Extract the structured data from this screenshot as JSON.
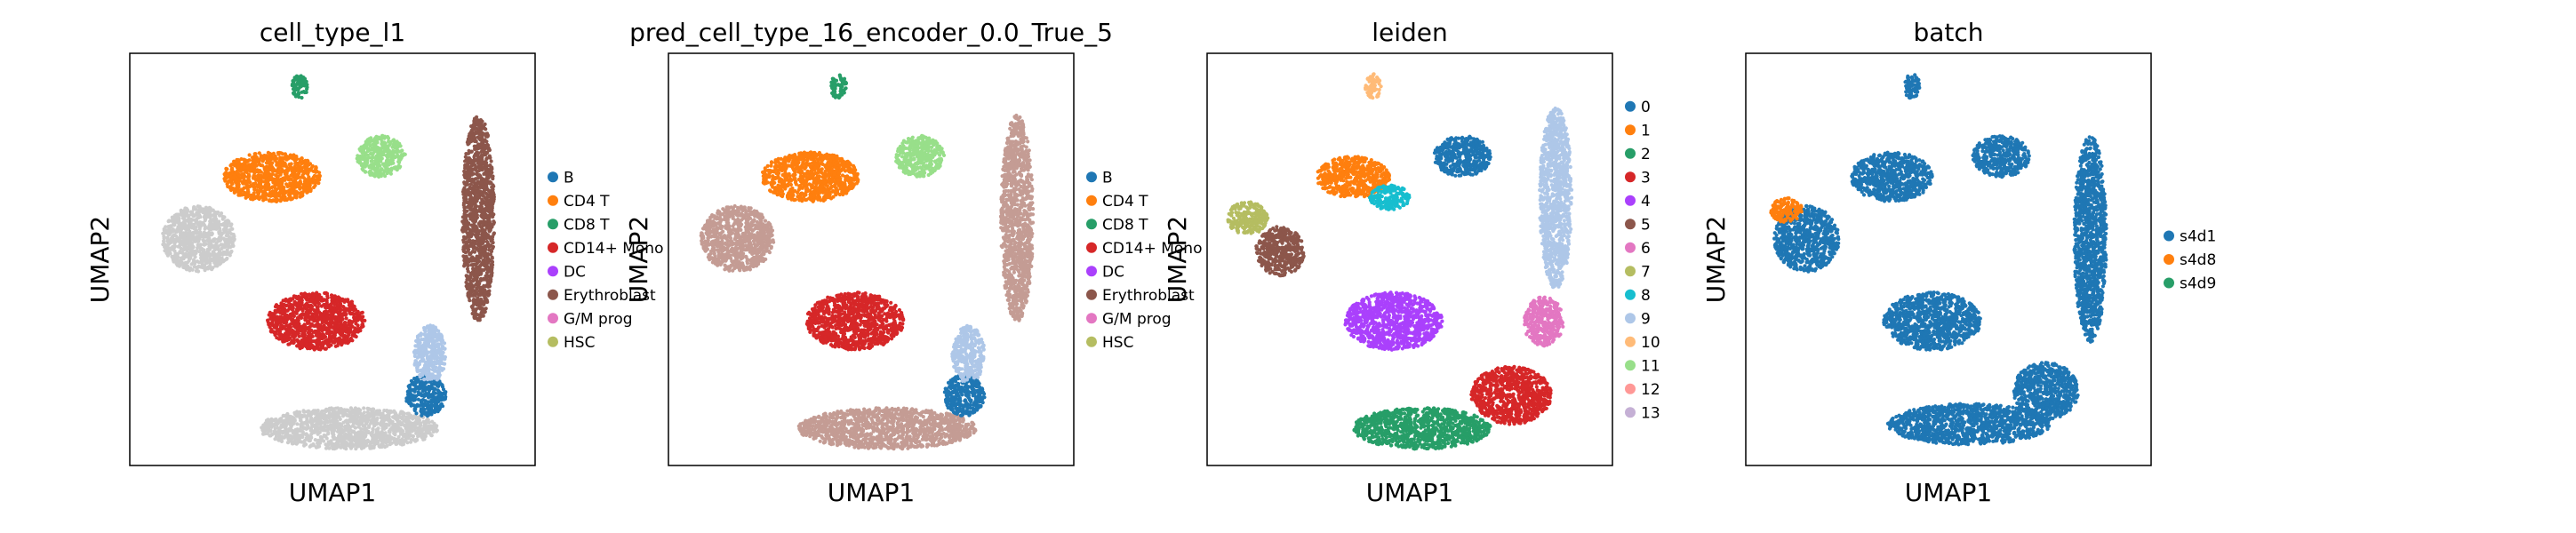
{
  "chart_data": [
    {
      "type": "scatter",
      "title": "cell_type_l1",
      "xlabel": "UMAP1",
      "ylabel": "UMAP2",
      "grid": false,
      "legend_position": "right",
      "legend": [
        {
          "label": "B",
          "color": "#1f77b4"
        },
        {
          "label": "CD4 T",
          "color": "#ff7f0e"
        },
        {
          "label": "CD8 T",
          "color": "#279e68"
        },
        {
          "label": "CD14+ Mono",
          "color": "#d62728"
        },
        {
          "label": "DC",
          "color": "#aa40fc"
        },
        {
          "label": "Erythroblast",
          "color": "#8c564b"
        },
        {
          "label": "G/M prog",
          "color": "#e377c2"
        },
        {
          "label": "HSC",
          "color": "#b5bd61"
        }
      ],
      "clusters": [
        {
          "x": 0.42,
          "y": 0.92,
          "rx": 0.02,
          "ry": 0.03,
          "color": "#279e68"
        },
        {
          "x": 0.62,
          "y": 0.75,
          "rx": 0.06,
          "ry": 0.05,
          "color": "#98df8a"
        },
        {
          "x": 0.35,
          "y": 0.7,
          "rx": 0.12,
          "ry": 0.06,
          "color": "#ff7f0e"
        },
        {
          "x": 0.17,
          "y": 0.55,
          "rx": 0.09,
          "ry": 0.08,
          "color": "#cccccc"
        },
        {
          "x": 0.46,
          "y": 0.35,
          "rx": 0.12,
          "ry": 0.07,
          "color": "#d62728"
        },
        {
          "x": 0.54,
          "y": 0.09,
          "rx": 0.22,
          "ry": 0.05,
          "color": "#cccccc"
        },
        {
          "x": 0.73,
          "y": 0.17,
          "rx": 0.05,
          "ry": 0.05,
          "color": "#1f77b4"
        },
        {
          "x": 0.74,
          "y": 0.27,
          "rx": 0.04,
          "ry": 0.07,
          "color": "#aec7e8"
        },
        {
          "x": 0.86,
          "y": 0.6,
          "rx": 0.04,
          "ry": 0.25,
          "color": "#8c564b"
        }
      ]
    },
    {
      "type": "scatter",
      "title": "pred_cell_type_16_encoder_0.0_True_5",
      "xlabel": "UMAP1",
      "ylabel": "UMAP2",
      "grid": false,
      "legend_position": "right",
      "legend": [
        {
          "label": "B",
          "color": "#1f77b4"
        },
        {
          "label": "CD4 T",
          "color": "#ff7f0e"
        },
        {
          "label": "CD8 T",
          "color": "#279e68"
        },
        {
          "label": "CD14+ Mono",
          "color": "#d62728"
        },
        {
          "label": "DC",
          "color": "#aa40fc"
        },
        {
          "label": "Erythroblast",
          "color": "#8c564b"
        },
        {
          "label": "G/M prog",
          "color": "#e377c2"
        },
        {
          "label": "HSC",
          "color": "#b5bd61"
        }
      ],
      "clusters": [
        {
          "x": 0.42,
          "y": 0.92,
          "rx": 0.02,
          "ry": 0.03,
          "color": "#279e68"
        },
        {
          "x": 0.62,
          "y": 0.75,
          "rx": 0.06,
          "ry": 0.05,
          "color": "#98df8a"
        },
        {
          "x": 0.35,
          "y": 0.7,
          "rx": 0.12,
          "ry": 0.06,
          "color": "#ff7f0e"
        },
        {
          "x": 0.17,
          "y": 0.55,
          "rx": 0.09,
          "ry": 0.08,
          "color": "#c49c94"
        },
        {
          "x": 0.46,
          "y": 0.35,
          "rx": 0.12,
          "ry": 0.07,
          "color": "#d62728"
        },
        {
          "x": 0.54,
          "y": 0.09,
          "rx": 0.22,
          "ry": 0.05,
          "color": "#c49c94"
        },
        {
          "x": 0.73,
          "y": 0.17,
          "rx": 0.05,
          "ry": 0.05,
          "color": "#1f77b4"
        },
        {
          "x": 0.74,
          "y": 0.27,
          "rx": 0.04,
          "ry": 0.07,
          "color": "#aec7e8"
        },
        {
          "x": 0.86,
          "y": 0.6,
          "rx": 0.04,
          "ry": 0.25,
          "color": "#c49c94"
        }
      ]
    },
    {
      "type": "scatter",
      "title": "leiden",
      "xlabel": "UMAP1",
      "ylabel": "UMAP2",
      "grid": false,
      "legend_position": "right",
      "legend": [
        {
          "label": "0",
          "color": "#1f77b4"
        },
        {
          "label": "1",
          "color": "#ff7f0e"
        },
        {
          "label": "2",
          "color": "#279e68"
        },
        {
          "label": "3",
          "color": "#d62728"
        },
        {
          "label": "4",
          "color": "#aa40fc"
        },
        {
          "label": "5",
          "color": "#8c564b"
        },
        {
          "label": "6",
          "color": "#e377c2"
        },
        {
          "label": "7",
          "color": "#b5bd61"
        },
        {
          "label": "8",
          "color": "#17becf"
        },
        {
          "label": "9",
          "color": "#aec7e8"
        },
        {
          "label": "10",
          "color": "#ffbb78"
        },
        {
          "label": "11",
          "color": "#98df8a"
        },
        {
          "label": "12",
          "color": "#ff9896"
        },
        {
          "label": "13",
          "color": "#c5b0d5"
        }
      ],
      "clusters": [
        {
          "x": 0.41,
          "y": 0.92,
          "rx": 0.02,
          "ry": 0.03,
          "color": "#ffbb78"
        },
        {
          "x": 0.63,
          "y": 0.75,
          "rx": 0.07,
          "ry": 0.05,
          "color": "#1f77b4"
        },
        {
          "x": 0.36,
          "y": 0.7,
          "rx": 0.09,
          "ry": 0.05,
          "color": "#ff7f0e"
        },
        {
          "x": 0.45,
          "y": 0.65,
          "rx": 0.05,
          "ry": 0.03,
          "color": "#17becf"
        },
        {
          "x": 0.1,
          "y": 0.6,
          "rx": 0.05,
          "ry": 0.04,
          "color": "#b5bd61"
        },
        {
          "x": 0.18,
          "y": 0.52,
          "rx": 0.06,
          "ry": 0.06,
          "color": "#8c564b"
        },
        {
          "x": 0.46,
          "y": 0.35,
          "rx": 0.12,
          "ry": 0.07,
          "color": "#aa40fc"
        },
        {
          "x": 0.53,
          "y": 0.09,
          "rx": 0.17,
          "ry": 0.05,
          "color": "#279e68"
        },
        {
          "x": 0.75,
          "y": 0.17,
          "rx": 0.1,
          "ry": 0.07,
          "color": "#d62728"
        },
        {
          "x": 0.83,
          "y": 0.35,
          "rx": 0.05,
          "ry": 0.06,
          "color": "#e377c2"
        },
        {
          "x": 0.86,
          "y": 0.65,
          "rx": 0.04,
          "ry": 0.22,
          "color": "#aec7e8"
        }
      ]
    },
    {
      "type": "scatter",
      "title": "batch",
      "xlabel": "UMAP1",
      "ylabel": "UMAP2",
      "grid": false,
      "legend_position": "right",
      "legend": [
        {
          "label": "s4d1",
          "color": "#1f77b4"
        },
        {
          "label": "s4d8",
          "color": "#ff7f0e"
        },
        {
          "label": "s4d9",
          "color": "#279e68"
        }
      ],
      "clusters": [
        {
          "x": 0.41,
          "y": 0.92,
          "rx": 0.02,
          "ry": 0.03,
          "color": "#1f77b4"
        },
        {
          "x": 0.63,
          "y": 0.75,
          "rx": 0.07,
          "ry": 0.05,
          "color": "#1f77b4"
        },
        {
          "x": 0.36,
          "y": 0.7,
          "rx": 0.1,
          "ry": 0.06,
          "color": "#1f77b4"
        },
        {
          "x": 0.15,
          "y": 0.55,
          "rx": 0.08,
          "ry": 0.08,
          "color": "#1f77b4"
        },
        {
          "x": 0.1,
          "y": 0.62,
          "rx": 0.04,
          "ry": 0.03,
          "color": "#ff7f0e"
        },
        {
          "x": 0.46,
          "y": 0.35,
          "rx": 0.12,
          "ry": 0.07,
          "color": "#1f77b4"
        },
        {
          "x": 0.55,
          "y": 0.1,
          "rx": 0.2,
          "ry": 0.05,
          "color": "#1f77b4"
        },
        {
          "x": 0.74,
          "y": 0.18,
          "rx": 0.08,
          "ry": 0.07,
          "color": "#1f77b4"
        },
        {
          "x": 0.85,
          "y": 0.55,
          "rx": 0.04,
          "ry": 0.25,
          "color": "#1f77b4"
        }
      ]
    }
  ]
}
